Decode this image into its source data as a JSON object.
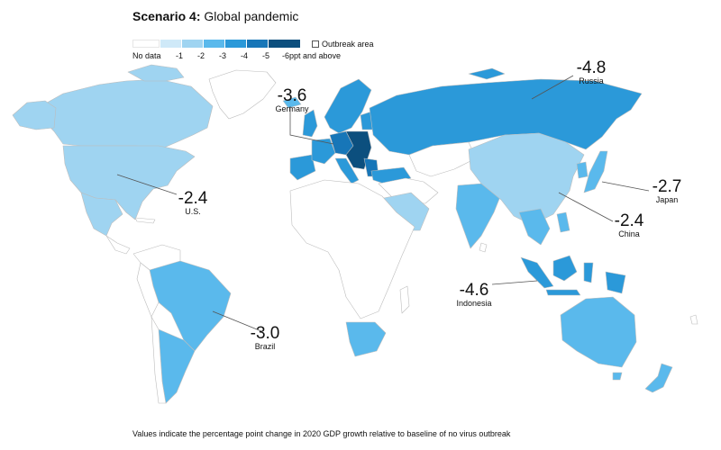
{
  "title": {
    "bold": "Scenario 4:",
    "rest": " Global pandemic"
  },
  "legend": {
    "no_data": "No data",
    "outbreak_label": "Outbreak area",
    "bins": [
      {
        "label": "-1",
        "color": "#cfe9f8"
      },
      {
        "label": "-2",
        "color": "#9fd4f1"
      },
      {
        "label": "-3",
        "color": "#5ab9ec"
      },
      {
        "label": "-4",
        "color": "#2b99d9"
      },
      {
        "label": "-5",
        "color": "#1776b8"
      },
      {
        "label": "-6ppt and above",
        "color": "#0c4f7e"
      }
    ]
  },
  "callouts": [
    {
      "value": "-2.4",
      "name": "U.S."
    },
    {
      "value": "-3.6",
      "name": "Germany"
    },
    {
      "value": "-4.8",
      "name": "Russia"
    },
    {
      "value": "-2.7",
      "name": "Japan"
    },
    {
      "value": "-2.4",
      "name": "China"
    },
    {
      "value": "-4.6",
      "name": "Indonesia"
    },
    {
      "value": "-3.0",
      "name": "Brazil"
    }
  ],
  "footnote": "Values indicate the percentage point change in 2020 GDP growth relative to baseline of no virus outbreak"
}
